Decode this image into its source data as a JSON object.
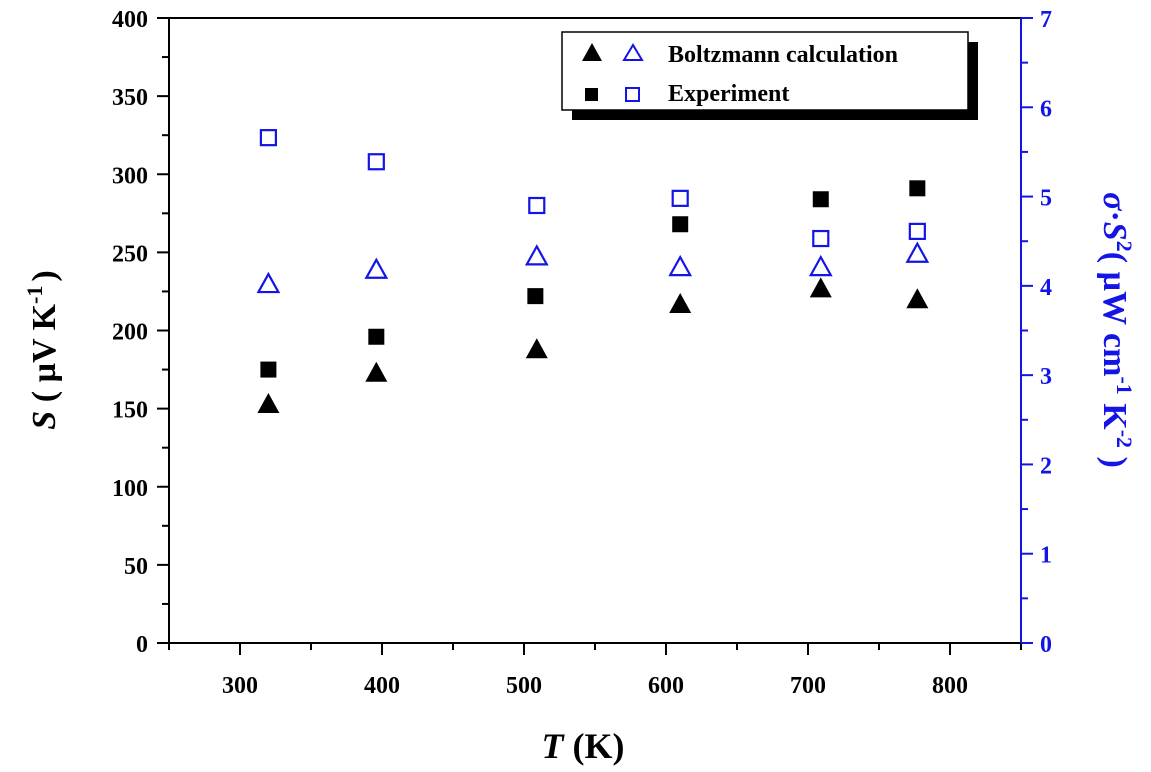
{
  "chart_data": {
    "type": "scatter",
    "xlabel": {
      "var": "T",
      "unit": " (K)"
    },
    "ylabel_left": {
      "var": "S",
      "unit_open": " ( µV K",
      "unit_exp": "-1",
      "unit_close": ")"
    },
    "ylabel_right": {
      "sigma": "σ",
      "dot": "·",
      "s": "S",
      "s_exp": "2",
      "unit_open": "( µW cm",
      "exp1": "-1",
      "k": " K",
      "exp2": "-2",
      "unit_close": " )"
    },
    "xlim": [
      250,
      850
    ],
    "ylim_left": [
      0,
      400
    ],
    "ylim_right": [
      0,
      7
    ],
    "x_ticks": [
      300,
      400,
      500,
      600,
      700,
      800
    ],
    "y_left_ticks": [
      0,
      50,
      100,
      150,
      200,
      250,
      300,
      350,
      400
    ],
    "y_right_ticks": [
      0,
      1,
      2,
      3,
      4,
      5,
      6,
      7
    ],
    "legend": {
      "placement": "top-right",
      "entries": [
        "Boltzmann calculation",
        "Experiment"
      ]
    },
    "colors": {
      "left_axis": "#000000",
      "right_axis": "#1414e6"
    },
    "series": [
      {
        "axis": "left",
        "marker": "filled-triangle",
        "color": "#000000",
        "x": [
          320,
          396,
          509,
          610,
          709,
          777
        ],
        "y": [
          153,
          173,
          188,
          217,
          227,
          220
        ]
      },
      {
        "axis": "left",
        "marker": "filled-square",
        "color": "#000000",
        "x": [
          320,
          396,
          508,
          610,
          709,
          777
        ],
        "y": [
          175,
          196,
          222,
          268,
          284,
          291
        ]
      },
      {
        "axis": "right",
        "marker": "open-triangle",
        "color": "#1414e6",
        "x": [
          320,
          396,
          509,
          610,
          709,
          777
        ],
        "y": [
          4.02,
          4.18,
          4.33,
          4.21,
          4.21,
          4.36
        ]
      },
      {
        "axis": "right",
        "marker": "open-square",
        "color": "#1414e6",
        "x": [
          320,
          396,
          509,
          610,
          709,
          777
        ],
        "y": [
          5.66,
          5.39,
          4.9,
          4.98,
          4.53,
          4.61
        ]
      }
    ]
  }
}
